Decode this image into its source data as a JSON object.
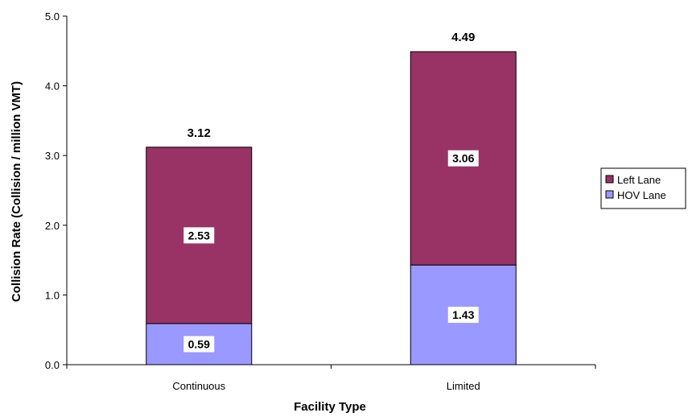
{
  "chart_data": {
    "type": "bar",
    "stacked": true,
    "categories": [
      "Continuous",
      "Limited"
    ],
    "series": [
      {
        "name": "HOV Lane",
        "values": [
          0.59,
          1.43
        ],
        "color": "#9999ff"
      },
      {
        "name": "Left Lane",
        "values": [
          2.53,
          3.06
        ],
        "color": "#993366"
      }
    ],
    "totals": [
      3.12,
      4.49
    ],
    "segment_labels": [
      [
        "0.59",
        "2.53"
      ],
      [
        "1.43",
        "3.06"
      ]
    ],
    "total_labels": [
      "3.12",
      "4.49"
    ],
    "xlabel": "Facility Type",
    "ylabel": "Collision Rate (Collision / million VMT)",
    "ylim": [
      0,
      5
    ],
    "yticks": [
      "0.0",
      "1.0",
      "2.0",
      "3.0",
      "4.0",
      "5.0"
    ],
    "grid": false,
    "legend_position": "right",
    "legend_order": [
      "Left Lane",
      "HOV Lane"
    ]
  }
}
